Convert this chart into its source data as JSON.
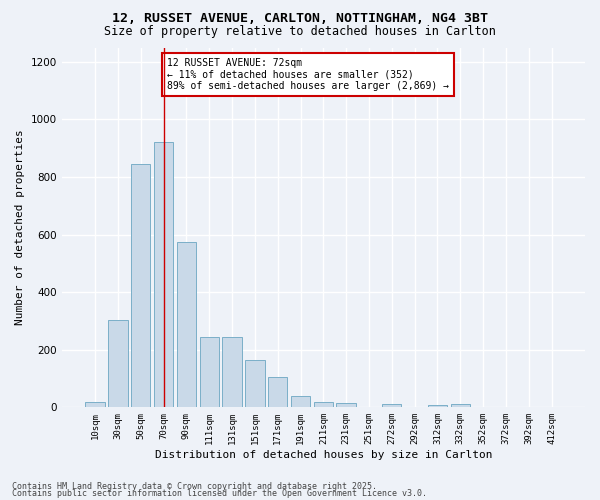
{
  "title_line1": "12, RUSSET AVENUE, CARLTON, NOTTINGHAM, NG4 3BT",
  "title_line2": "Size of property relative to detached houses in Carlton",
  "xlabel": "Distribution of detached houses by size in Carlton",
  "ylabel": "Number of detached properties",
  "categories": [
    "10sqm",
    "30sqm",
    "50sqm",
    "70sqm",
    "90sqm",
    "111sqm",
    "131sqm",
    "151sqm",
    "171sqm",
    "191sqm",
    "211sqm",
    "231sqm",
    "251sqm",
    "272sqm",
    "292sqm",
    "312sqm",
    "332sqm",
    "352sqm",
    "372sqm",
    "392sqm",
    "412sqm"
  ],
  "values": [
    20,
    305,
    845,
    920,
    575,
    245,
    245,
    165,
    105,
    38,
    20,
    15,
    0,
    10,
    0,
    8,
    10,
    0,
    0,
    0,
    0
  ],
  "bar_color": "#c9d9e8",
  "bar_edge_color": "#7aafc8",
  "vline_x_index": 3,
  "vline_color": "#cc0000",
  "annotation_text": "12 RUSSET AVENUE: 72sqm\n← 11% of detached houses are smaller (352)\n89% of semi-detached houses are larger (2,869) →",
  "annotation_box_color": "#ffffff",
  "annotation_box_edge": "#cc0000",
  "ylim": [
    0,
    1250
  ],
  "yticks": [
    0,
    200,
    400,
    600,
    800,
    1000,
    1200
  ],
  "footer_line1": "Contains HM Land Registry data © Crown copyright and database right 2025.",
  "footer_line2": "Contains public sector information licensed under the Open Government Licence v3.0.",
  "bg_color": "#eef2f8",
  "plot_bg_color": "#eef2f8",
  "grid_color": "#ffffff",
  "title_fontsize": 9.5,
  "subtitle_fontsize": 8.5,
  "tick_fontsize": 6.5,
  "label_fontsize": 8,
  "footer_fontsize": 6
}
